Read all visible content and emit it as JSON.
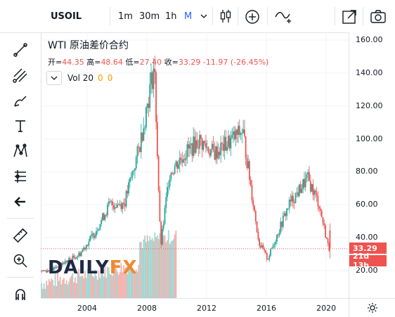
{
  "toolbar": {
    "symbol": "USOIL",
    "intervals": [
      "1m",
      "30m",
      "1h",
      "M"
    ],
    "active_interval": "M"
  },
  "legend": {
    "title": "WTI 原油差价合约",
    "ohlc": {
      "open_label": "开=",
      "open": "44.35",
      "high_label": "高=",
      "high": "48.64",
      "low_label": "低=",
      "low": "27.40",
      "close_label": "收=",
      "close": "33.29",
      "change": "-11.97 (-26.45%)"
    },
    "volume": {
      "label": "Vol 20",
      "v1": "0",
      "v2": "0"
    }
  },
  "watermark": {
    "text1": "DAILY",
    "text2": "FX"
  },
  "price_axis": {
    "ticks": [
      "160.00",
      "140.00",
      "120.00",
      "100.00",
      "80.00",
      "60.00",
      "40.00",
      "20.00"
    ],
    "current_price": "33.29",
    "countdown": "21d 13h"
  },
  "time_axis": {
    "ticks": [
      "2004",
      "2008",
      "2012",
      "2016",
      "2020"
    ]
  },
  "colors": {
    "up": "#26a69a",
    "down": "#ef5350",
    "accent": "#2962ff"
  },
  "chart_data": {
    "type": "candlestick",
    "symbol": "USOIL",
    "x": [
      "2001",
      "2002",
      "2003",
      "2004",
      "2005",
      "2006",
      "2007",
      "2008-07",
      "2008-12",
      "2009",
      "2010",
      "2011",
      "2012",
      "2013",
      "2014-06",
      "2015",
      "2016-02",
      "2017",
      "2018-10",
      "2019",
      "2020-03"
    ],
    "close": [
      20,
      25,
      30,
      43,
      60,
      61,
      95,
      145,
      34,
      79,
      91,
      99,
      91,
      98,
      105,
      37,
      27,
      60,
      76,
      61,
      33.29
    ],
    "ylim": [
      0,
      165
    ],
    "current_price": 33.29
  }
}
